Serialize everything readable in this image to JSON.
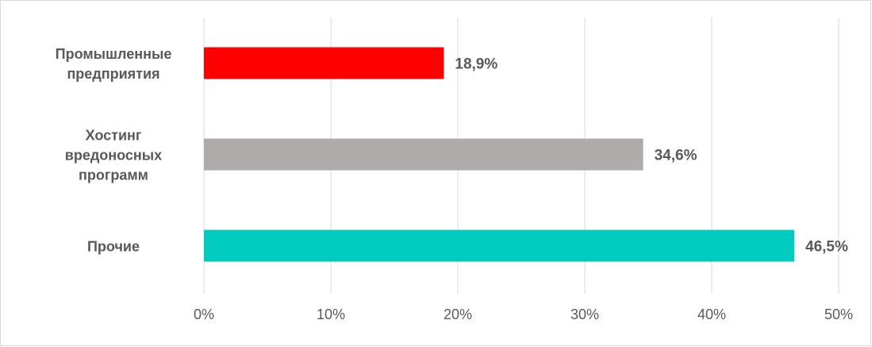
{
  "chart_data": {
    "type": "hbar",
    "categories": [
      [
        "Промышленные",
        "предприятия"
      ],
      [
        "Хостинг",
        "вредоносных",
        "программ"
      ],
      [
        "Прочие"
      ]
    ],
    "values": [
      18.9,
      34.6,
      46.5
    ],
    "value_labels": [
      "18,9%",
      "34,6%",
      "46,5%"
    ],
    "colors": [
      "#ff0000",
      "#afabab",
      "#00cbbf"
    ],
    "xlim": [
      0,
      50
    ],
    "xticks": [
      {
        "value": 0,
        "label": "0%"
      },
      {
        "value": 10,
        "label": "10%"
      },
      {
        "value": 20,
        "label": "20%"
      },
      {
        "value": 30,
        "label": "30%"
      },
      {
        "value": 40,
        "label": "40%"
      },
      {
        "value": 50,
        "label": "50%"
      }
    ],
    "grid": true
  }
}
